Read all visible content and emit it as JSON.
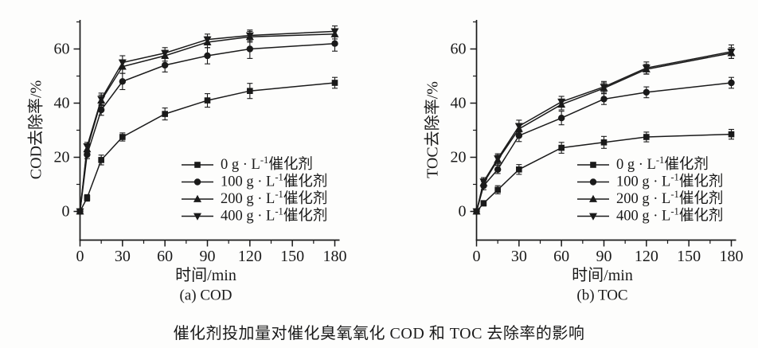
{
  "figure": {
    "caption": "催化剂投加量对催化臭氧氧化 COD 和 TOC 去除率的影响"
  },
  "chart_data": [
    {
      "id": "a",
      "type": "line",
      "panel_label": "(a) COD",
      "xlabel": "时间/min",
      "ylabel": "COD去除率/%",
      "x": [
        0,
        5,
        15,
        30,
        60,
        90,
        120,
        180
      ],
      "xticks": [
        0,
        30,
        60,
        90,
        120,
        150,
        180
      ],
      "yticks": [
        0,
        20,
        40,
        60
      ],
      "xlim": [
        0,
        183
      ],
      "ylim": [
        -11,
        71
      ],
      "grid": false,
      "legend_position": "inside lower right",
      "series": [
        {
          "name": "0 g · L⁻¹催化剂",
          "marker": "square",
          "values": [
            0,
            5,
            19,
            27.5,
            36,
            41,
            44.5,
            47.5
          ],
          "errors": [
            0.8,
            1.2,
            1.8,
            1.5,
            2.2,
            2.5,
            2.8,
            2
          ]
        },
        {
          "name": "100 g · L⁻¹催化剂",
          "marker": "circle",
          "values": [
            0,
            21,
            37.5,
            48,
            54,
            57.5,
            60,
            62
          ],
          "errors": [
            0.8,
            1.5,
            2,
            3,
            2.5,
            3,
            3.5,
            2.8
          ]
        },
        {
          "name": "200 g · L⁻¹催化剂",
          "marker": "triangle-up",
          "values": [
            0,
            23,
            41,
            53.5,
            57.5,
            62.5,
            64.5,
            65.5
          ],
          "errors": [
            0.8,
            1.5,
            2,
            2.5,
            2,
            2,
            2,
            1.8
          ]
        },
        {
          "name": "400 g · L⁻¹催化剂",
          "marker": "triangle-down",
          "values": [
            0,
            24,
            41.5,
            55,
            58.5,
            63.5,
            65,
            66.5
          ],
          "errors": [
            0.8,
            1.5,
            2.2,
            2.5,
            2,
            2,
            2,
            2
          ]
        }
      ]
    },
    {
      "id": "b",
      "type": "line",
      "panel_label": "(b) TOC",
      "xlabel": "时间/min",
      "ylabel": "TOC去除率/%",
      "x": [
        0,
        5,
        15,
        30,
        60,
        90,
        120,
        180
      ],
      "xticks": [
        0,
        30,
        60,
        90,
        120,
        150,
        180
      ],
      "yticks": [
        0,
        20,
        40,
        60
      ],
      "xlim": [
        0,
        183
      ],
      "ylim": [
        -11,
        71
      ],
      "grid": false,
      "legend_position": "inside lower right",
      "series": [
        {
          "name": "0 g · L⁻¹催化剂",
          "marker": "square",
          "values": [
            0,
            3,
            8,
            15.5,
            23.5,
            25.5,
            27.5,
            28.5
          ],
          "errors": [
            0.8,
            1,
            1.5,
            1.8,
            2,
            2.2,
            1.8,
            1.8
          ]
        },
        {
          "name": "100 g · L⁻¹催化剂",
          "marker": "circle",
          "values": [
            0,
            9.5,
            15.5,
            28,
            34.5,
            41.5,
            44,
            47.5
          ],
          "errors": [
            0.8,
            1.5,
            1.5,
            2.2,
            2.5,
            2,
            2,
            2
          ]
        },
        {
          "name": "200 g · L⁻¹催化剂",
          "marker": "triangle-up",
          "values": [
            0,
            10.5,
            19,
            30.5,
            39.5,
            45.5,
            52.5,
            58.5
          ],
          "errors": [
            0.8,
            1.5,
            1.8,
            2,
            2,
            2,
            1.8,
            2
          ]
        },
        {
          "name": "400 g · L⁻¹催化剂",
          "marker": "triangle-down",
          "values": [
            0,
            11,
            19.5,
            31.5,
            40.5,
            46,
            53,
            59
          ],
          "errors": [
            0.8,
            1.5,
            1.8,
            2.2,
            2,
            2,
            2.2,
            2.5
          ]
        }
      ]
    }
  ],
  "style": {
    "ink_color": "#1a1a1a",
    "background_color": "#fdfdfc"
  }
}
